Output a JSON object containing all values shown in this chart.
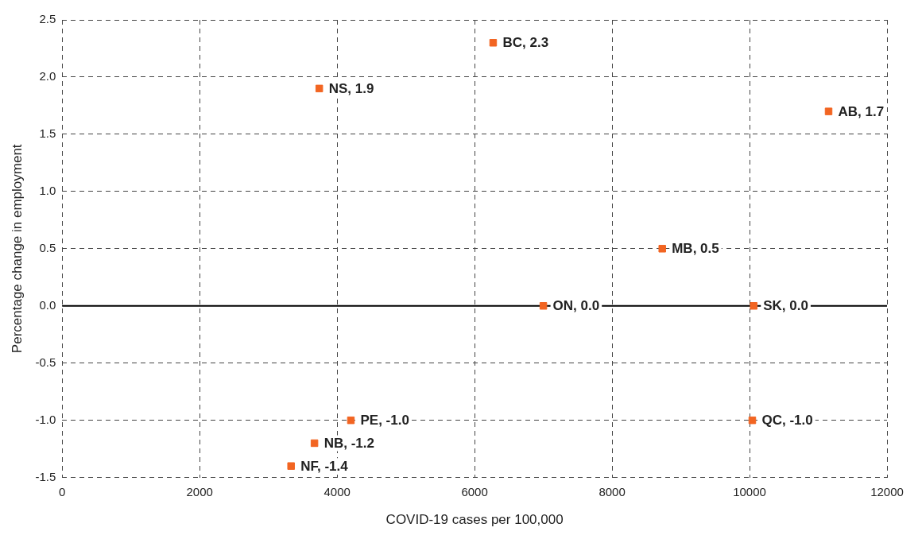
{
  "chart_data": {
    "type": "scatter",
    "xlabel": "COVID-19 cases per 100,000",
    "ylabel": "Percentage change in employment",
    "x": [
      6270,
      3740,
      11150,
      8730,
      7000,
      10060,
      10040,
      4200,
      3670,
      3330
    ],
    "series": [
      {
        "color": "#f26522",
        "values": [
          2.3,
          1.9,
          1.7,
          0.5,
          0.0,
          0.0,
          -1.0,
          -1.0,
          -1.2,
          -1.4
        ],
        "value_labels": [
          "BC, 2.3",
          "NS, 1.9",
          "AB, 1.7",
          "MB, 0.5",
          "ON, 0.0",
          "SK, 0.0",
          "QC, -1.0",
          "PE, -1.0",
          "NB, -1.2",
          "NF, -1.4"
        ]
      }
    ],
    "xlim": [
      0,
      12000
    ],
    "xticks": [
      0,
      2000,
      4000,
      6000,
      8000,
      10000,
      12000
    ],
    "ylim": [
      -1.5,
      2.5
    ],
    "yticks": [
      {
        "value": -1.5,
        "label": "-1.5"
      },
      {
        "value": -1,
        "label": "-1.0"
      },
      {
        "value": -0.5,
        "label": "-0.5"
      },
      {
        "value": 0,
        "label": "0.0"
      },
      {
        "value": 0.5,
        "label": "0.5"
      },
      {
        "value": 1,
        "label": "1.0"
      },
      {
        "value": 1.5,
        "label": "1.5"
      },
      {
        "value": 2,
        "label": "2.0"
      },
      {
        "value": 2.5,
        "label": "2.5"
      }
    ],
    "ref_lines": [
      {
        "axis": "y",
        "value": 0,
        "color": "#000000",
        "line_style": "solid"
      }
    ],
    "grid": true,
    "marker": "square",
    "legend": false
  }
}
